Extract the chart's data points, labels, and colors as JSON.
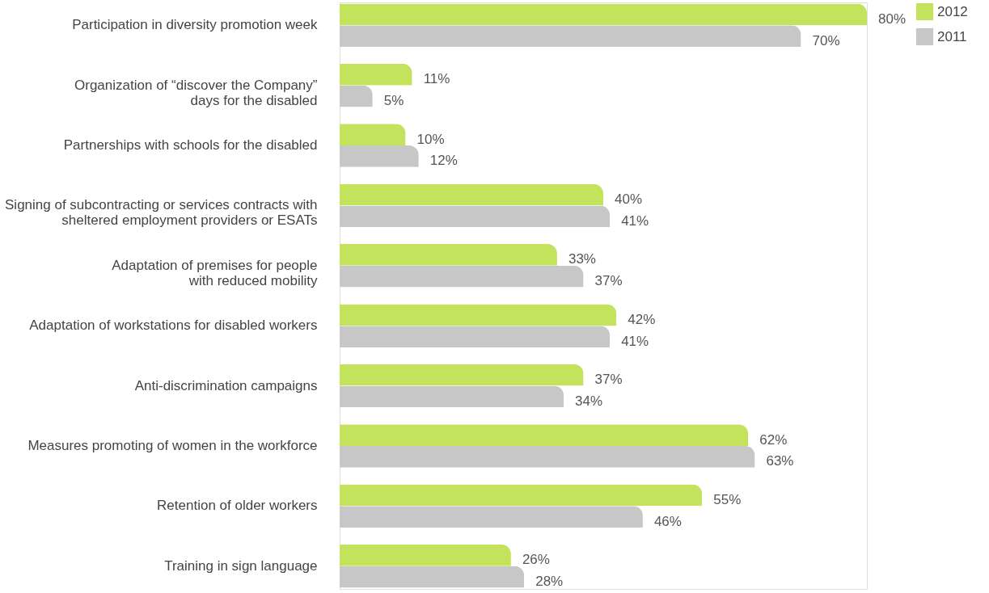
{
  "chart_data": {
    "type": "bar",
    "orientation": "horizontal",
    "legend": "right",
    "grid": false,
    "categories": [
      "Participation in diversity promotion week",
      "Organization of “discover the Company”\ndays for the disabled",
      "Partnerships with schools for the disabled",
      "Signing of subcontracting or services contracts with\nsheltered employment providers or ESATs",
      "Adaptation of premises for people\nwith reduced mobility",
      "Adaptation of workstations for disabled workers",
      "Anti-discrimination campaigns",
      "Measures promoting of women in the workforce",
      "Retention of older workers",
      "Training in sign language"
    ],
    "series": [
      {
        "name": "2012",
        "color": "#c3e35c",
        "values": [
          80,
          11,
          10,
          40,
          33,
          42,
          37,
          62,
          55,
          26
        ],
        "value_labels": [
          "80%",
          "11%",
          "10%",
          "40%",
          "33%",
          "42%",
          "37%",
          "62%",
          "55%",
          "26%"
        ]
      },
      {
        "name": "2011",
        "color": "#c6c7c6",
        "values": [
          70,
          5,
          12,
          41,
          37,
          41,
          34,
          63,
          46,
          28
        ],
        "value_labels": [
          "70%",
          "5%",
          "12%",
          "41%",
          "37%",
          "41%",
          "34%",
          "63%",
          "46%",
          "28%"
        ]
      }
    ]
  }
}
